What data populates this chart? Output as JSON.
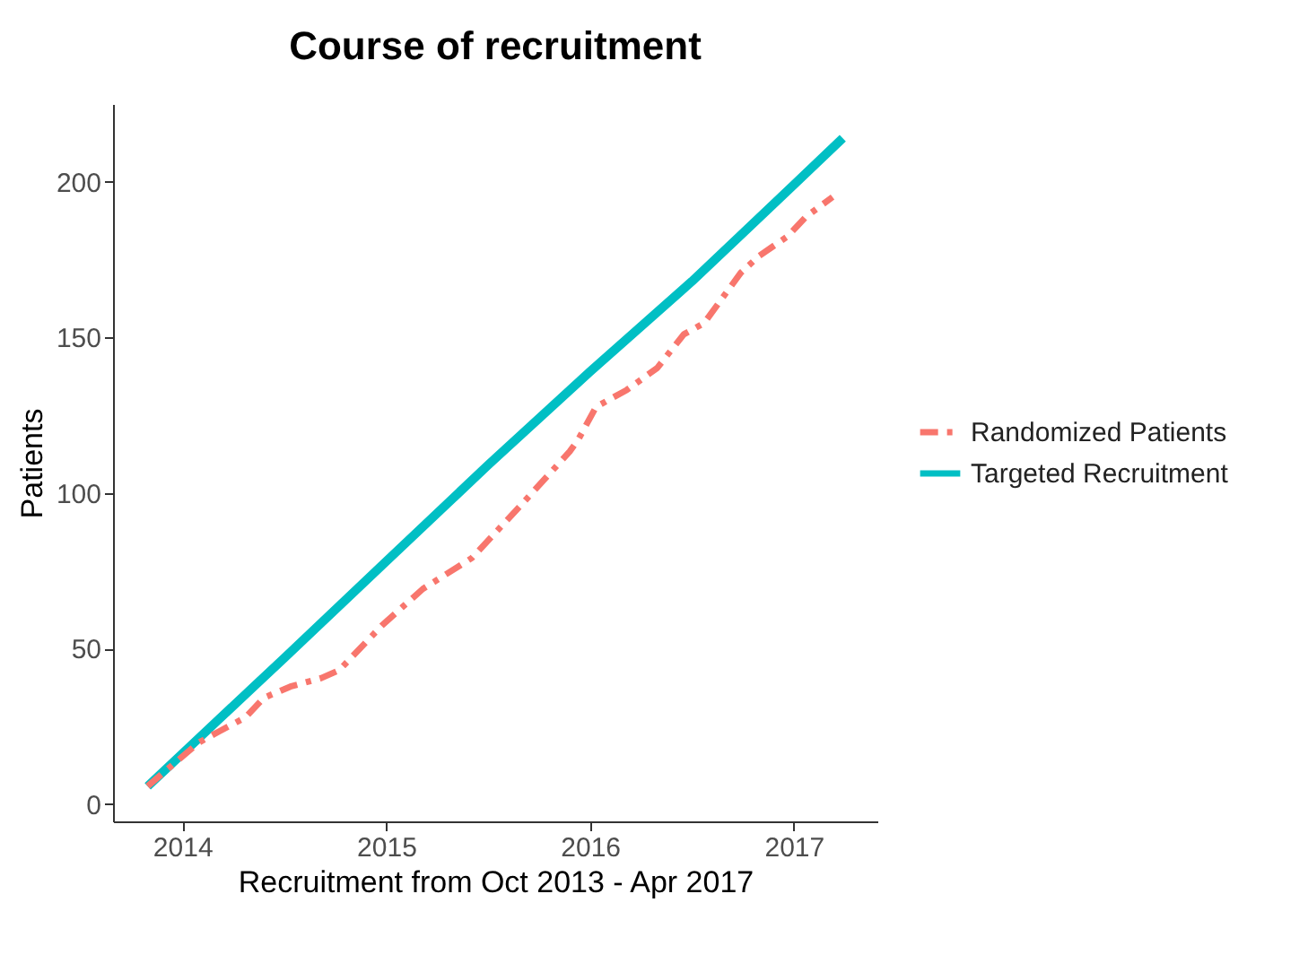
{
  "chart_data": {
    "type": "line",
    "title": "Course of recruitment",
    "xlabel": "Recruitment from Oct 2013 - Apr 2017",
    "ylabel": "Patients",
    "xlim": [
      2013.66,
      2017.41
    ],
    "xticks": [
      2014,
      2015,
      2016,
      2017
    ],
    "ylim": [
      -5.5,
      225
    ],
    "yticks": [
      0,
      50,
      100,
      150,
      200
    ],
    "grid": false,
    "legend": "right",
    "series": [
      {
        "name": "Randomized Patients",
        "color": "#f8766d",
        "line_style": "dashed",
        "x": [
          2013.83,
          2014.08,
          2014.18,
          2014.31,
          2014.4,
          2014.53,
          2014.68,
          2014.77,
          2014.98,
          2015.18,
          2015.42,
          2015.65,
          2015.9,
          2015.94,
          2016.03,
          2016.18,
          2016.33,
          2016.46,
          2016.56,
          2016.74,
          2016.83,
          2016.97,
          2017.06,
          2017.19
        ],
        "values": [
          5.8,
          19.8,
          23.4,
          27.9,
          34.2,
          37.8,
          40.5,
          43.1,
          57.5,
          69.2,
          79.1,
          95.3,
          113.3,
          116.9,
          127.7,
          133.1,
          140.2,
          151,
          154.6,
          170.8,
          176.2,
          182.5,
          188.8,
          195.1
        ]
      },
      {
        "name": "Targeted Recruitment",
        "color": "#00bfc4",
        "line_style": "solid",
        "x": [
          2013.83,
          2014.5,
          2015,
          2015.5,
          2016,
          2016.5,
          2017,
          2017.24
        ],
        "values": [
          5.8,
          47,
          78,
          109,
          139,
          168,
          199,
          214
        ]
      }
    ]
  }
}
